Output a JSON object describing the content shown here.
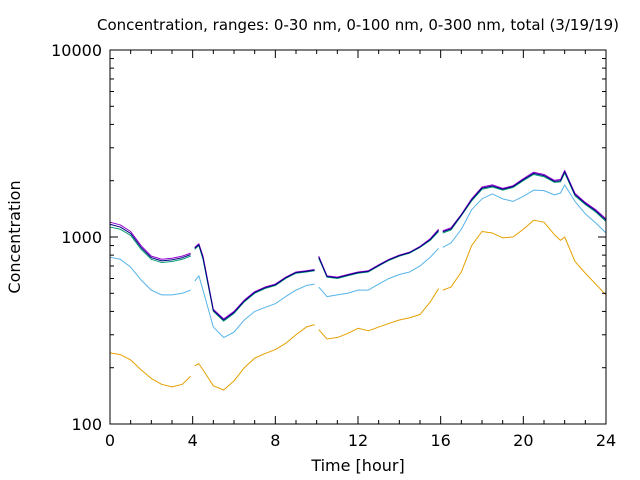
{
  "chart_data": {
    "type": "line",
    "title": "Concentration, ranges: 0-30 nm, 0-100 nm, 0-300 nm, total (3/19/19)",
    "xlabel": "Time [hour]",
    "ylabel": "Concentration",
    "xlim": [
      0,
      24
    ],
    "ylim": [
      100,
      10000
    ],
    "yscale": "log",
    "grid": false,
    "legend": "none",
    "x_ticks": [
      0,
      4,
      8,
      12,
      16,
      20,
      24
    ],
    "x_tick_labels": [
      "0",
      "4",
      "8",
      "12",
      "16",
      "20",
      "24"
    ],
    "y_ticks": [
      100,
      1000,
      10000
    ],
    "y_tick_labels": [
      "100",
      "1000",
      "10000"
    ],
    "x": [
      0,
      0.5,
      1,
      1.5,
      2,
      2.5,
      3,
      3.5,
      3.9,
      4.1,
      4.3,
      4.5,
      5,
      5.5,
      6,
      6.5,
      7,
      7.5,
      8,
      8.5,
      9,
      9.5,
      9.9,
      10.1,
      10.5,
      11,
      11.5,
      12,
      12.5,
      13,
      13.5,
      14,
      14.5,
      15,
      15.5,
      15.9,
      16.1,
      16.5,
      17,
      17.5,
      18,
      18.5,
      19,
      19.5,
      20,
      20.5,
      21,
      21.5,
      21.8,
      22,
      22.5,
      23,
      23.5,
      24
    ],
    "segments": [
      [
        0,
        8
      ],
      [
        9,
        22
      ],
      [
        23,
        35
      ],
      [
        36,
        53
      ]
    ],
    "series": [
      {
        "color": "#e5a000",
        "values": [
          240,
          235,
          220,
          195,
          175,
          163,
          158,
          163,
          180,
          205,
          210,
          195,
          160,
          152,
          170,
          200,
          225,
          238,
          250,
          270,
          300,
          330,
          340,
          320,
          285,
          290,
          305,
          325,
          315,
          330,
          345,
          360,
          370,
          385,
          450,
          530,
          520,
          540,
          650,
          900,
          1070,
          1050,
          990,
          1000,
          1100,
          1230,
          1200,
          1030,
          960,
          1000,
          740,
          640,
          560,
          490
        ]
      },
      {
        "color": "#56b4e9",
        "values": [
          780,
          760,
          690,
          590,
          520,
          490,
          490,
          500,
          520,
          580,
          620,
          520,
          330,
          290,
          310,
          360,
          400,
          420,
          440,
          480,
          520,
          550,
          560,
          540,
          480,
          490,
          500,
          520,
          520,
          560,
          600,
          630,
          650,
          700,
          780,
          870,
          880,
          930,
          1100,
          1400,
          1600,
          1700,
          1600,
          1550,
          1650,
          1780,
          1770,
          1680,
          1720,
          1900,
          1550,
          1330,
          1190,
          1050
        ]
      },
      {
        "color": "#009e73",
        "values": [
          1130,
          1100,
          1020,
          860,
          760,
          730,
          740,
          760,
          790,
          860,
          900,
          760,
          400,
          355,
          390,
          450,
          500,
          530,
          550,
          600,
          640,
          650,
          660,
          770,
          610,
          600,
          620,
          640,
          650,
          700,
          750,
          790,
          820,
          880,
          960,
          1070,
          1050,
          1090,
          1300,
          1560,
          1800,
          1850,
          1780,
          1840,
          2000,
          2160,
          2100,
          1960,
          1970,
          2200,
          1660,
          1490,
          1360,
          1210
        ]
      },
      {
        "color": "#9400d3",
        "values": [
          1200,
          1160,
          1070,
          900,
          790,
          760,
          770,
          790,
          820,
          880,
          920,
          790,
          410,
          365,
          400,
          460,
          510,
          540,
          560,
          610,
          650,
          660,
          670,
          790,
          620,
          610,
          630,
          650,
          660,
          710,
          760,
          800,
          830,
          890,
          980,
          1100,
          1080,
          1120,
          1320,
          1600,
          1850,
          1900,
          1820,
          1880,
          2050,
          2220,
          2160,
          2010,
          2030,
          2270,
          1710,
          1530,
          1400,
          1250
        ]
      },
      {
        "color": "#000080",
        "values": [
          1170,
          1130,
          1045,
          880,
          775,
          745,
          755,
          775,
          805,
          870,
          910,
          775,
          405,
          360,
          395,
          455,
          505,
          535,
          555,
          605,
          645,
          655,
          665,
          780,
          615,
          605,
          625,
          645,
          655,
          705,
          755,
          795,
          825,
          885,
          970,
          1085,
          1065,
          1105,
          1310,
          1580,
          1825,
          1875,
          1800,
          1860,
          2025,
          2190,
          2130,
          1985,
          2000,
          2235,
          1685,
          1510,
          1380,
          1230
        ]
      }
    ]
  }
}
